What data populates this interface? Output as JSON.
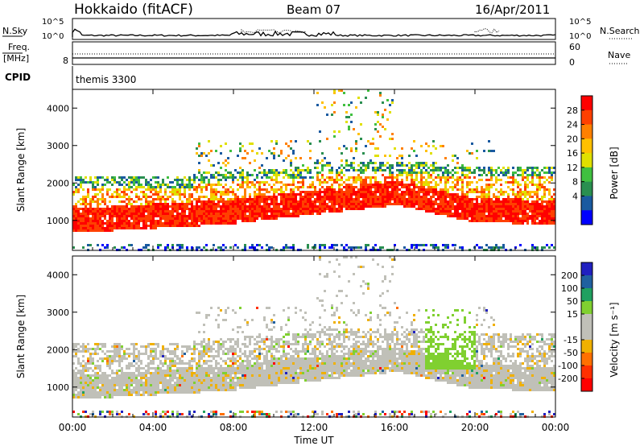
{
  "header": {
    "station": "Hokkaido (fitACF)",
    "beam": "Beam 07",
    "date": "16/Apr/2011"
  },
  "noise_panel": {
    "left_label": "N.Sky",
    "right_label": "N.Search",
    "left_ticks": [
      "10^5",
      "10^0"
    ],
    "right_ticks": [
      "10^5",
      "10^0"
    ]
  },
  "freq_panel": {
    "left_label_line1": "Freq.",
    "left_label_line2": "[MHz]",
    "right_label": "Nave",
    "left_tick": "8",
    "right_ticks": [
      "60",
      "0"
    ]
  },
  "cpid_panel": {
    "label": "CPID",
    "mode": "themis 3300"
  },
  "chart_data": [
    {
      "type": "heatmap",
      "name": "power",
      "ylabel": "Slant Range [km]",
      "yticks": [
        "1000",
        "2000",
        "3000",
        "4000"
      ],
      "ylim": [
        200,
        4500
      ],
      "xlim_hours": [
        0,
        24
      ],
      "colorbar_label": "Power [dB]",
      "colorbar_ticks": [
        "28",
        "24",
        "20",
        "16",
        "12",
        "8",
        "4"
      ],
      "colorbar_colors": [
        "#ff0000",
        "#ff4000",
        "#ff8000",
        "#ffc000",
        "#e0e000",
        "#40c040",
        "#2a8f50",
        "#1a5aa0",
        "#0000ff"
      ]
    },
    {
      "type": "heatmap",
      "name": "velocity",
      "ylabel": "Slant Range [km]",
      "yticks": [
        "1000",
        "2000",
        "3000",
        "4000"
      ],
      "ylim": [
        200,
        4500
      ],
      "xlim_hours": [
        0,
        24
      ],
      "colorbar_label": "Velocity [m s⁻¹]",
      "colorbar_ticks": [
        "200",
        "100",
        "50",
        "15",
        "-15",
        "-50",
        "-100",
        "-200"
      ],
      "colorbar_colors": [
        "#2020c0",
        "#2060a0",
        "#20a060",
        "#80d030",
        "#c0c0b8",
        "#c0c0b8",
        "#f0b000",
        "#ff7000",
        "#ff3000",
        "#ff0000"
      ]
    }
  ],
  "x_axis": {
    "ticks": [
      "00:00",
      "04:00",
      "08:00",
      "12:00",
      "16:00",
      "20:00",
      "00:00"
    ],
    "label": "Time UT"
  }
}
